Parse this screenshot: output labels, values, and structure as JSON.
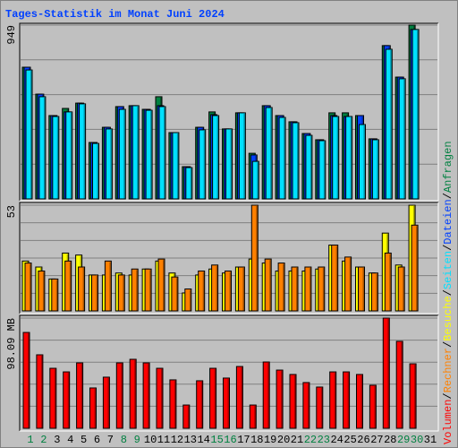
{
  "chart_data": {
    "type": "bar",
    "title": "Tages-Statistik im Monat Juni 2024",
    "categories": [
      "1",
      "2",
      "3",
      "4",
      "5",
      "6",
      "7",
      "8",
      "9",
      "10",
      "11",
      "12",
      "13",
      "14",
      "15",
      "16",
      "17",
      "18",
      "19",
      "20",
      "21",
      "22",
      "23",
      "24",
      "25",
      "26",
      "27",
      "28",
      "29",
      "30",
      "31"
    ],
    "category_colors": [
      "#008040",
      "#008040",
      "#000000",
      "#000000",
      "#000000",
      "#000000",
      "#000000",
      "#008040",
      "#008040",
      "#000000",
      "#000000",
      "#000000",
      "#000000",
      "#000000",
      "#008040",
      "#008040",
      "#000000",
      "#000000",
      "#000000",
      "#000000",
      "#000000",
      "#008040",
      "#008040",
      "#000000",
      "#000000",
      "#000000",
      "#000000",
      "#000000",
      "#008040",
      "#008040",
      "#000000"
    ],
    "legend_separator": "/",
    "panels": [
      {
        "ylim": [
          0,
          949
        ],
        "yticks": [
          949
        ],
        "grid_divisions": 5,
        "series": [
          {
            "name": "Anfragen",
            "color": "#008040",
            "values": [
              719,
              572,
              455,
              494,
              523,
              308,
              391,
              504,
              509,
              489,
              558,
              362,
              176,
              391,
              475,
              382,
              470,
              249,
              509,
              455,
              421,
              357,
              323,
              470,
              470,
              455,
              328,
              837,
              665,
              949,
              0
            ]
          },
          {
            "name": "Dateien",
            "color": "#0040ff",
            "values": [
              719,
              572,
              455,
              475,
              523,
              308,
              391,
              504,
              509,
              489,
              509,
              362,
              176,
              391,
              460,
              382,
              470,
              240,
              509,
              455,
              421,
              357,
              323,
              455,
              450,
              455,
              328,
              837,
              665,
              925,
              0
            ]
          },
          {
            "name": "Seiten",
            "color": "#00e0ff",
            "values": [
              704,
              558,
              450,
              475,
              519,
              303,
              382,
              489,
              509,
              484,
              504,
              362,
              171,
              377,
              455,
              382,
              470,
              205,
              499,
              445,
              416,
              347,
              318,
              450,
              450,
              406,
              323,
              817,
              656,
              925,
              0
            ]
          }
        ]
      },
      {
        "ylim": [
          0,
          53
        ],
        "yticks": [
          53
        ],
        "grid_divisions": 6,
        "series": [
          {
            "name": "Besuche",
            "color": "#ffff00",
            "values": [
              25,
              22,
              16,
              29,
              28,
              18,
              18,
              19,
              18,
              21,
              25,
              19,
              9,
              18,
              21,
              19,
              22,
              26,
              24,
              20,
              20,
              20,
              21,
              33,
              25,
              22,
              19,
              39,
              23,
              53,
              0
            ]
          },
          {
            "name": "Rechner",
            "color": "#ff8000",
            "values": [
              24,
              20,
              16,
              25,
              22,
              18,
              25,
              18,
              21,
              21,
              26,
              17,
              11,
              20,
              23,
              20,
              22,
              53,
              26,
              24,
              22,
              22,
              22,
              33,
              27,
              22,
              19,
              29,
              22,
              43,
              0
            ]
          }
        ]
      },
      {
        "ylim": [
          0,
          98.09
        ],
        "yticks": [
          {
            "value": 98.09,
            "label": "98.09 MB"
          }
        ],
        "grid_divisions": 5,
        "series": [
          {
            "name": "Volumen",
            "color": "#ff0000",
            "values": [
              85.3,
              65.4,
              53.4,
              50.2,
              58.2,
              35.9,
              45.5,
              58.2,
              61.4,
              58.2,
              53.4,
              43.1,
              20.7,
              42.3,
              53.4,
              44.7,
              55.0,
              20.7,
              59.0,
              51.8,
              47.9,
              40.7,
              36.7,
              50.2,
              50.2,
              47.9,
              38.3,
              98.09,
              77.4,
              57.4,
              0
            ]
          }
        ]
      }
    ]
  }
}
